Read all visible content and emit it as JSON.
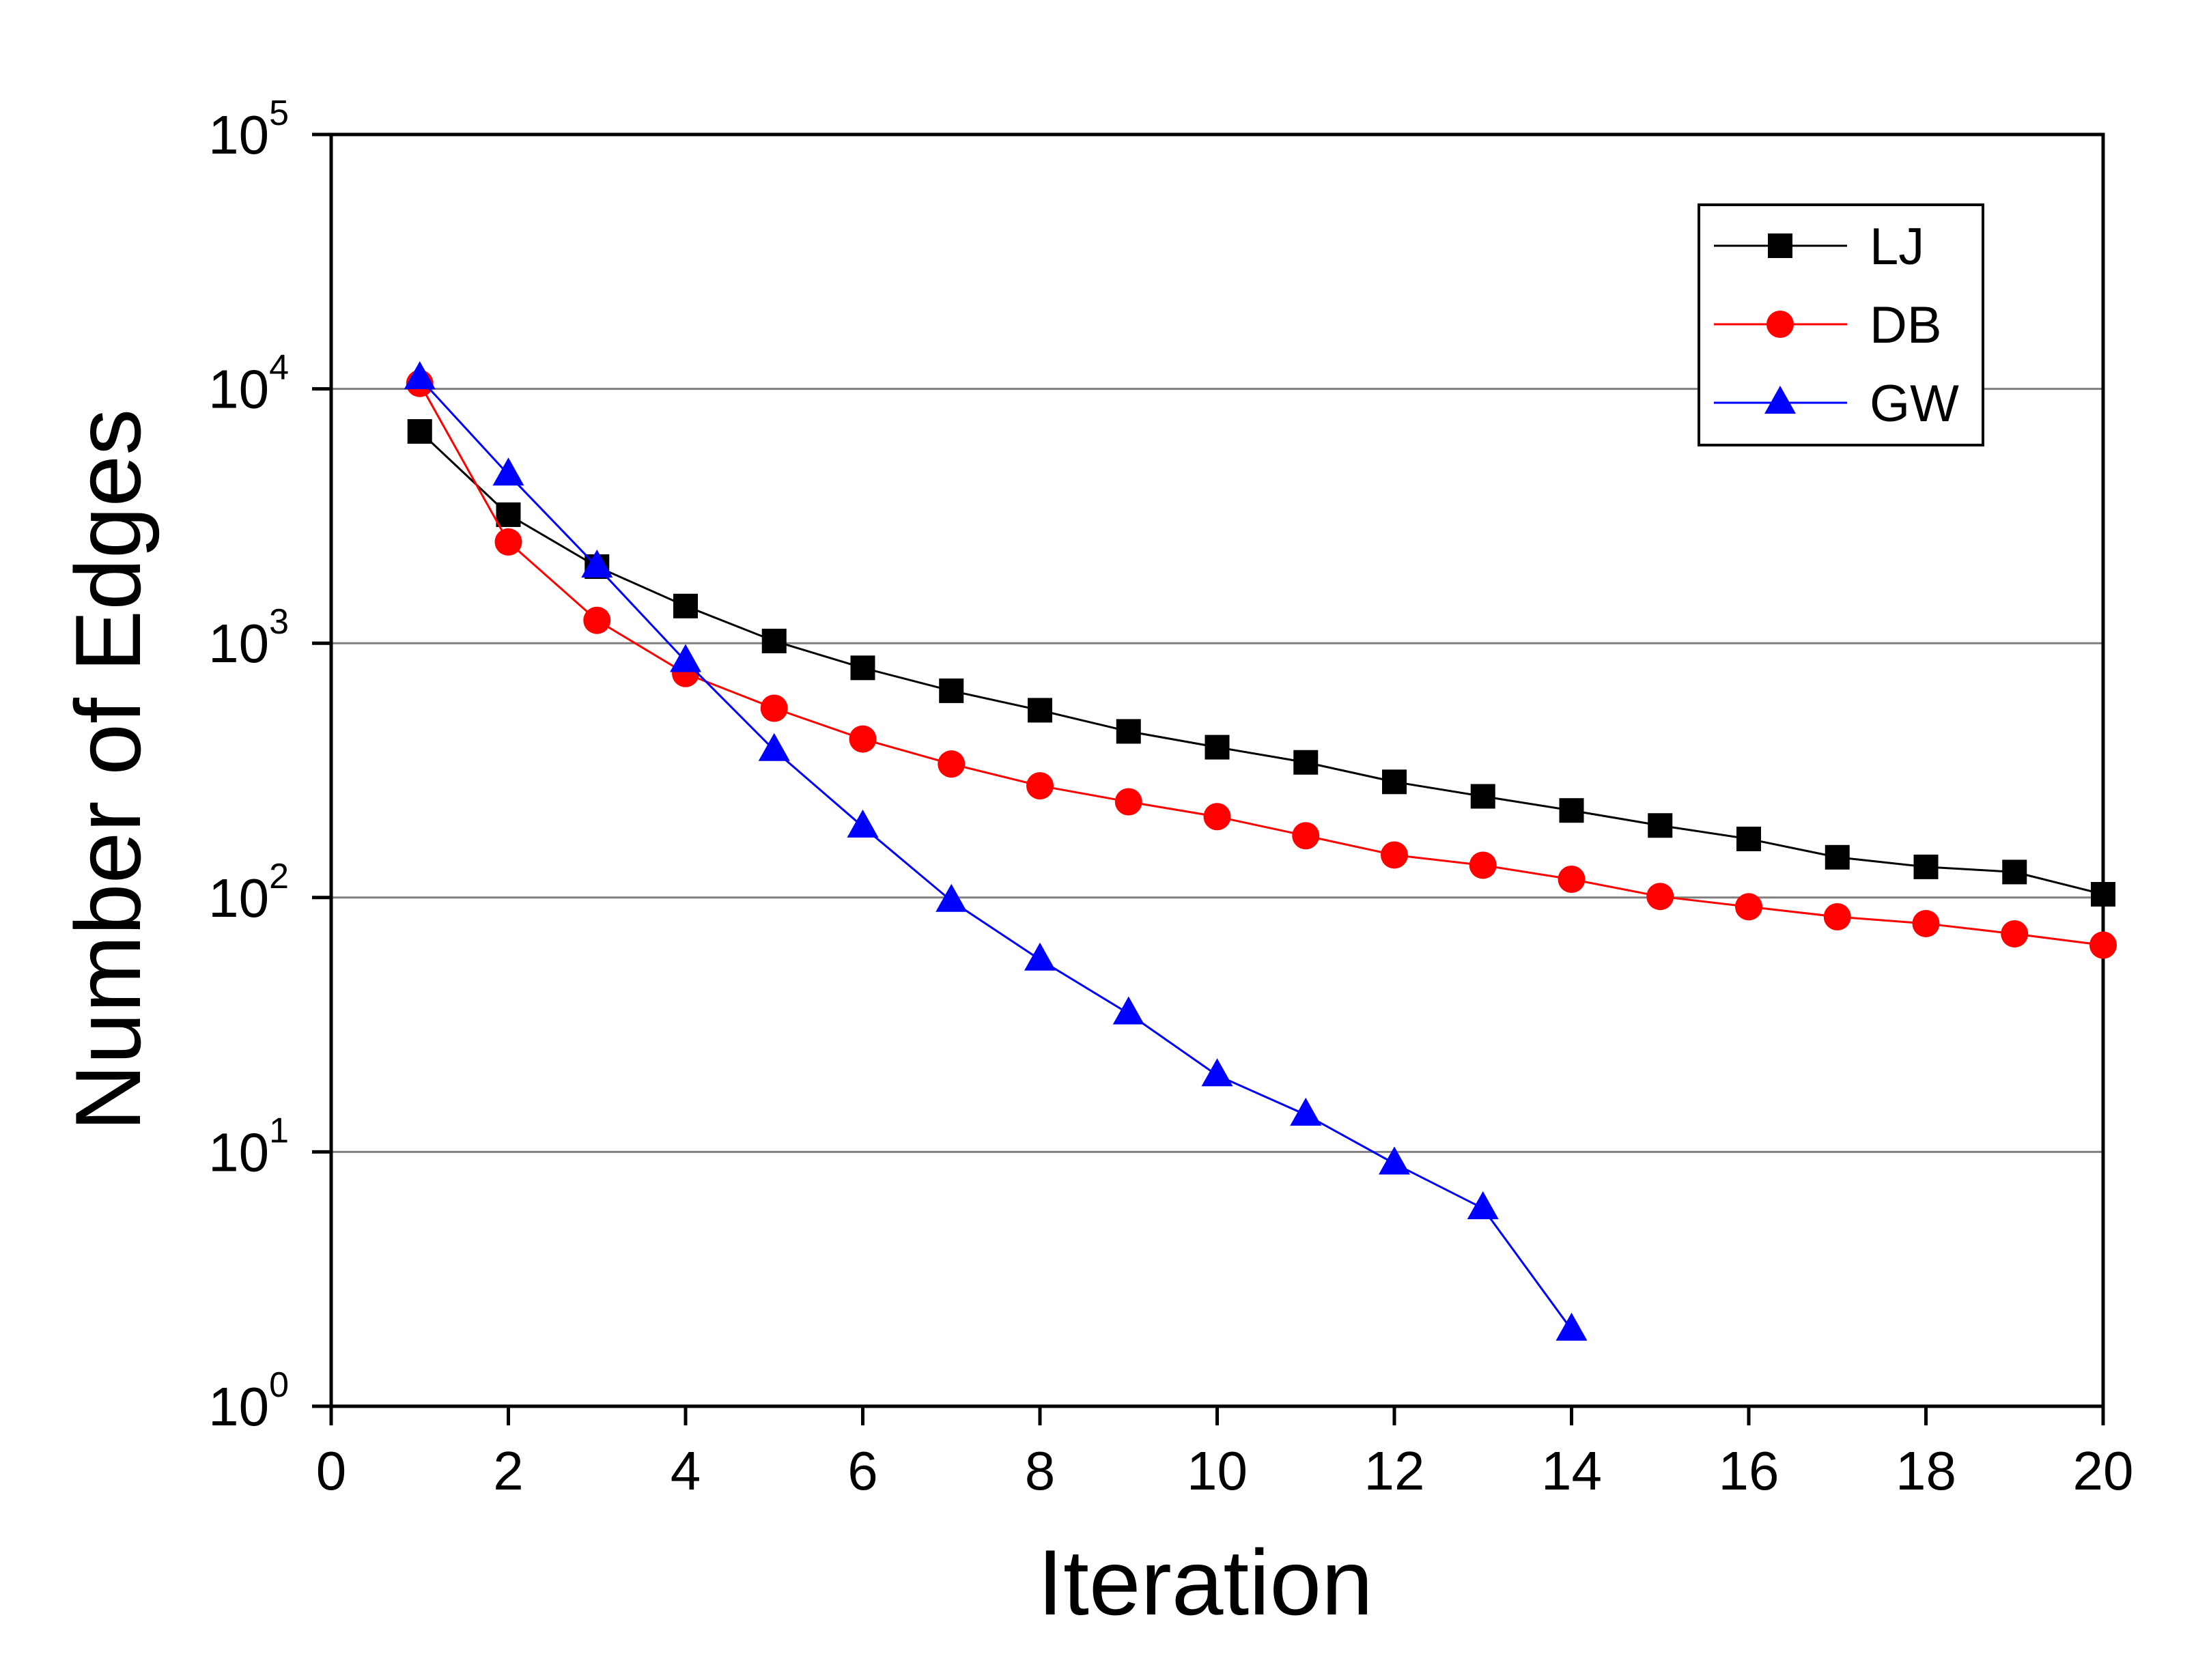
{
  "chart_data": {
    "type": "line",
    "title": "",
    "xlabel": "Iteration",
    "ylabel": "Number of Edges",
    "xlim": [
      0,
      20
    ],
    "ylim": [
      1,
      100000
    ],
    "yscale": "log",
    "grid": "horizontal",
    "legend_position": "top-right",
    "x_ticks": [
      "0",
      "2",
      "4",
      "6",
      "8",
      "10",
      "12",
      "14",
      "16",
      "18",
      "20"
    ],
    "y_ticks": [
      {
        "base": "10",
        "exp": "0"
      },
      {
        "base": "10",
        "exp": "1"
      },
      {
        "base": "10",
        "exp": "2"
      },
      {
        "base": "10",
        "exp": "3"
      },
      {
        "base": "10",
        "exp": "4"
      },
      {
        "base": "10",
        "exp": "5"
      }
    ],
    "series": [
      {
        "name": "LJ",
        "color": "#000000",
        "marker": "square",
        "x": [
          1,
          2,
          3,
          4,
          5,
          6,
          7,
          8,
          9,
          10,
          11,
          12,
          13,
          14,
          15,
          16,
          17,
          18,
          19,
          20
        ],
        "values": [
          6800,
          3200,
          2000,
          1400,
          1020,
          800,
          650,
          545,
          450,
          390,
          340,
          285,
          250,
          220,
          192,
          170,
          144,
          132,
          126,
          103
        ]
      },
      {
        "name": "DB",
        "color": "#ff0000",
        "marker": "circle",
        "x": [
          1,
          2,
          3,
          4,
          5,
          6,
          7,
          8,
          9,
          10,
          11,
          12,
          13,
          14,
          15,
          16,
          17,
          18,
          19,
          20
        ],
        "values": [
          10500,
          2500,
          1230,
          760,
          555,
          420,
          335,
          275,
          238,
          208,
          175,
          147,
          134,
          118,
          101,
          92,
          84,
          79,
          72,
          65
        ]
      },
      {
        "name": "GW",
        "color": "#0000ff",
        "marker": "triangle",
        "x": [
          1,
          2,
          3,
          4,
          5,
          6,
          7,
          8,
          9,
          10,
          11,
          12,
          13,
          14
        ],
        "values": [
          11000,
          4600,
          2000,
          850,
          380,
          190,
          97,
          57,
          35,
          20,
          14,
          9,
          6,
          2
        ]
      }
    ]
  }
}
